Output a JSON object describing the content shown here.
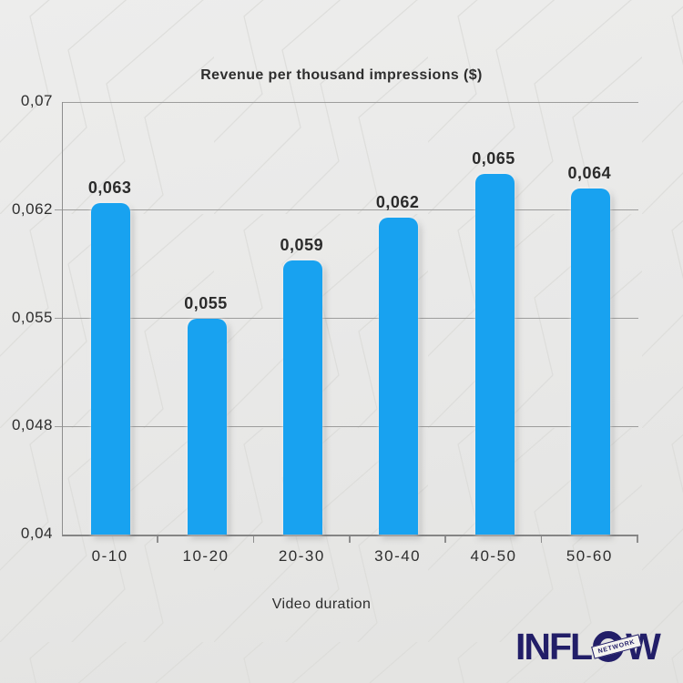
{
  "chart_data": {
    "type": "bar",
    "title": "Revenue per thousand impressions ($)",
    "xlabel": "Video duration",
    "ylabel": "",
    "categories": [
      "0-10",
      "10-20",
      "20-30",
      "30-40",
      "40-50",
      "50-60"
    ],
    "values": [
      0.063,
      0.055,
      0.059,
      0.062,
      0.065,
      0.064
    ],
    "value_labels": [
      "0,063",
      "0,055",
      "0,059",
      "0,062",
      "0,065",
      "0,064"
    ],
    "ylim": [
      0.04,
      0.07
    ],
    "yticks": [
      {
        "value": 0.07,
        "label": "0,07"
      },
      {
        "value": 0.0625,
        "label": "0,062"
      },
      {
        "value": 0.055,
        "label": "0,055"
      },
      {
        "value": 0.0475,
        "label": "0,048"
      },
      {
        "value": 0.04,
        "label": "0,04"
      }
    ],
    "grid": true,
    "legend": null,
    "bar_color": "#18a2f0"
  },
  "logo": {
    "left": "INFL",
    "right": "W",
    "badge": "NETWORK",
    "color": "#221e68"
  },
  "colors": {
    "background": "#e9e9e8",
    "pattern_line": "#dbdbd8",
    "text": "#2e2e2e",
    "grid": "#9d9d9c",
    "axis": "#858585",
    "bar": "#18a2f0",
    "logo_navy": "#221e68"
  }
}
